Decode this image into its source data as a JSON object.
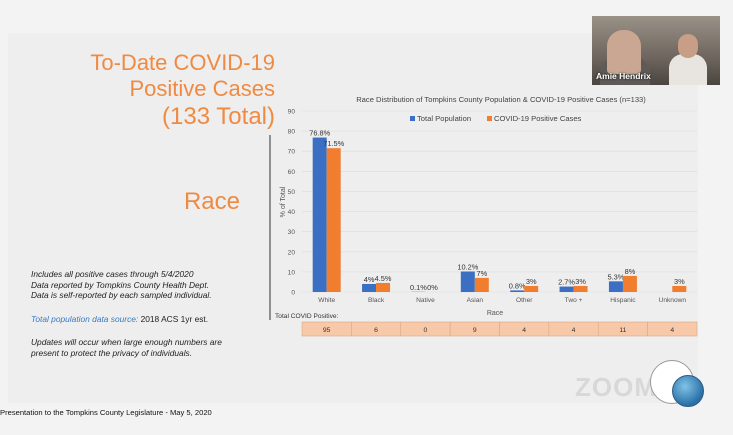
{
  "slide": {
    "title_lines": [
      "To-Date COVID-19",
      "Positive Cases",
      "(133 Total)"
    ],
    "section_heading": "Race",
    "notes": [
      "Includes all positive cases through 5/4/2020",
      "Data reported by Tompkins County Health Dept.",
      "Data is self-reported by each sampled individual."
    ],
    "source_label": "Total population data source:",
    "source_value": "2018 ACS 1yr est.",
    "privacy_lines": [
      "Updates will occur when large enough numbers are",
      "present to protect the privacy of individuals."
    ],
    "footer": "Presentation to the Tompkins County Legislature - May 5, 2020"
  },
  "video": {
    "name": "Amie Hendrix"
  },
  "zoom": {
    "logo": "ZOOM"
  },
  "colors": {
    "population": "#3a6fc4",
    "positive": "#f07e2e",
    "title": "#f08a42",
    "table_fill": "#f7c9a8"
  },
  "chart_data": {
    "type": "bar",
    "title": "Race Distribution of Tompkins County Population & COVID-19 Positive Cases (n=133)",
    "xlabel": "Race",
    "ylabel": "% of Total",
    "ylim": [
      0,
      90
    ],
    "yticks": [
      0,
      10,
      20,
      30,
      40,
      50,
      60,
      70,
      80,
      90
    ],
    "categories": [
      "White",
      "Black",
      "Native",
      "Asian",
      "Other",
      "Two +",
      "Hispanic",
      "Unknown"
    ],
    "series": [
      {
        "name": "Total Population",
        "values": [
          76.8,
          4,
          0.1,
          10.2,
          0.8,
          2.7,
          5.3,
          null
        ],
        "labels": [
          "76.8%",
          "4%",
          "0.1%",
          "10.2%",
          "0.8%",
          "2.7%",
          "5.3%",
          ""
        ]
      },
      {
        "name": "COVID-19 Positive Cases",
        "values": [
          71.5,
          4.5,
          0,
          7,
          3,
          3,
          8,
          3
        ],
        "labels": [
          "71.5%",
          "4.5%",
          "0%",
          "7%",
          "3%",
          "3%",
          "8%",
          "3%"
        ]
      }
    ],
    "legend_position": "top",
    "table": {
      "label": "Total COVID Positive:",
      "values": [
        95,
        6,
        0,
        9,
        4,
        4,
        11,
        4
      ]
    }
  }
}
